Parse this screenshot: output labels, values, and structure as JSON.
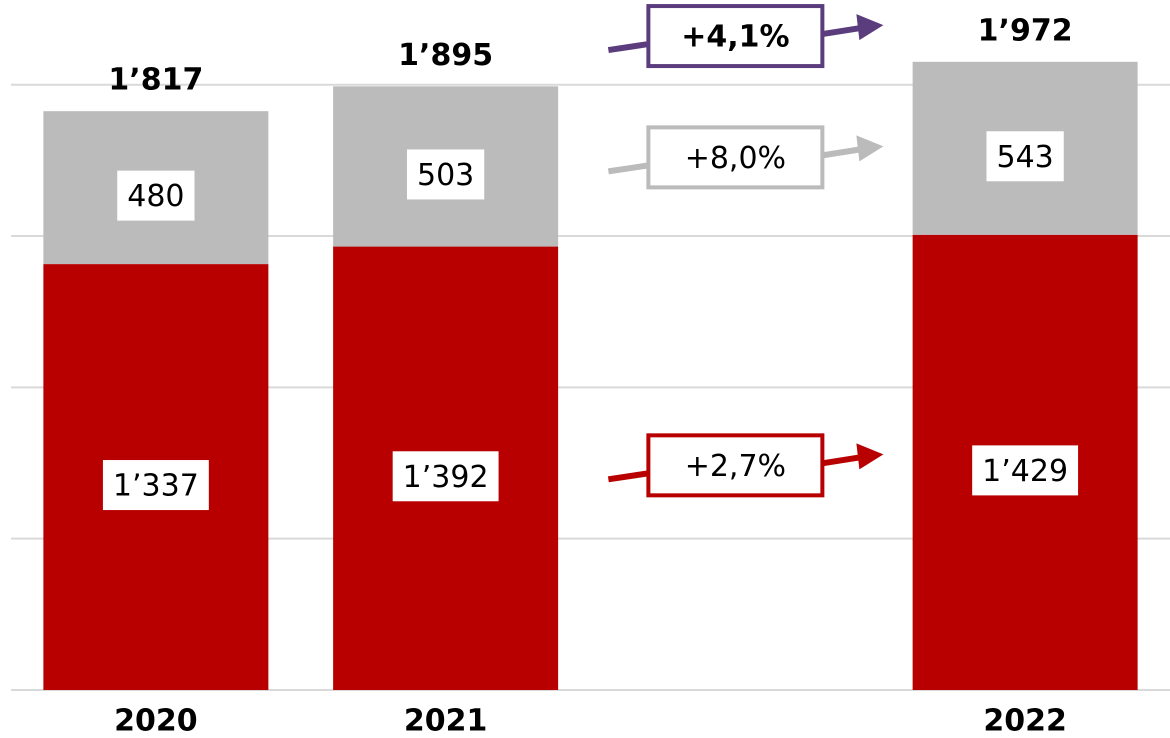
{
  "chart_data": {
    "type": "stacked_bar",
    "categories": [
      "2020",
      "2021",
      null,
      "2022"
    ],
    "series": [
      {
        "name": null,
        "color": "#b80000",
        "values": [
          1337,
          1392,
          null,
          1429
        ],
        "value_labels": [
          "1’337",
          "1’392",
          null,
          "1’429"
        ]
      },
      {
        "name": null,
        "color": "#bbbbbb",
        "values": [
          480,
          503,
          null,
          543
        ],
        "value_labels": [
          "480",
          "503",
          null,
          "543"
        ]
      }
    ],
    "totals": {
      "values": [
        1817,
        1895,
        null,
        1972
      ],
      "value_labels": [
        "1’817",
        "1’895",
        null,
        "1’972"
      ]
    },
    "annotations": [
      {
        "text": "+4,1%",
        "color": "#5b3d7e",
        "bold": true
      },
      {
        "text": "+8,0%",
        "color": "#bbbbbb",
        "bold": false
      },
      {
        "text": "+2,7%",
        "color": "#b80000",
        "bold": false
      }
    ],
    "ylim": [
      0,
      2166
    ],
    "yticks": [
      0,
      475,
      950,
      1425,
      1900
    ],
    "grid": true
  }
}
